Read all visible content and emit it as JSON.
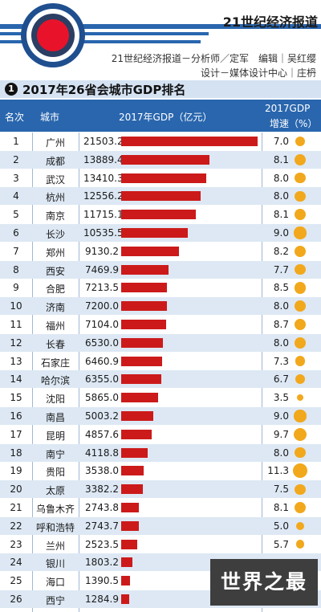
{
  "header": {
    "brand": "21世纪经济报道",
    "credit_line1": "21世纪经济报道－分析师／定军　编辑｜吴红缨",
    "credit_line2": "设计－媒体设计中心｜庄枬"
  },
  "title": {
    "number": "1",
    "text": "2017年26省会城市GDP排名"
  },
  "table_header": {
    "rank": "名次",
    "city": "城市",
    "gdp": "2017年GDP（亿元）",
    "growth_line1": "2017GDP",
    "growth_line2": "增速（%）"
  },
  "watermark": "世界之最",
  "colors": {
    "header_blue": "#2966ae",
    "bar_red": "#cc1a1a",
    "dot_orange": "#f2a81c",
    "row_alt": "#dde8f4"
  },
  "chart_data": {
    "type": "bar",
    "title": "2017年26省会城市GDP排名",
    "orientation": "horizontal",
    "columns": [
      "名次",
      "城市",
      "2017年GDP（亿元）",
      "2017GDP增速（%）"
    ],
    "rows": [
      {
        "rank": "1",
        "city": "广州",
        "gdp": "21503.2",
        "growth": "7.0"
      },
      {
        "rank": "2",
        "city": "成都",
        "gdp": "13889.4",
        "growth": "8.1"
      },
      {
        "rank": "3",
        "city": "武汉",
        "gdp": "13410.3",
        "growth": "8.0"
      },
      {
        "rank": "4",
        "city": "杭州",
        "gdp": "12556.2",
        "growth": "8.0"
      },
      {
        "rank": "5",
        "city": "南京",
        "gdp": "11715.1",
        "growth": "8.1"
      },
      {
        "rank": "6",
        "city": "长沙",
        "gdp": "10535.5",
        "growth": "9.0"
      },
      {
        "rank": "7",
        "city": "郑州",
        "gdp": "9130.2",
        "growth": "8.2"
      },
      {
        "rank": "8",
        "city": "西安",
        "gdp": "7469.9",
        "growth": "7.7"
      },
      {
        "rank": "9",
        "city": "合肥",
        "gdp": "7213.5",
        "growth": "8.5"
      },
      {
        "rank": "10",
        "city": "济南",
        "gdp": "7200.0",
        "growth": "8.0"
      },
      {
        "rank": "11",
        "city": "福州",
        "gdp": "7104.0",
        "growth": "8.7"
      },
      {
        "rank": "12",
        "city": "长春",
        "gdp": "6530.0",
        "growth": "8.0"
      },
      {
        "rank": "13",
        "city": "石家庄",
        "gdp": "6460.9",
        "growth": "7.3"
      },
      {
        "rank": "14",
        "city": "哈尔滨",
        "gdp": "6355.0",
        "growth": "6.7"
      },
      {
        "rank": "15",
        "city": "沈阳",
        "gdp": "5865.0",
        "growth": "3.5"
      },
      {
        "rank": "16",
        "city": "南昌",
        "gdp": "5003.2",
        "growth": "9.0"
      },
      {
        "rank": "17",
        "city": "昆明",
        "gdp": "4857.6",
        "growth": "9.7"
      },
      {
        "rank": "18",
        "city": "南宁",
        "gdp": "4118.8",
        "growth": "8.0"
      },
      {
        "rank": "19",
        "city": "贵阳",
        "gdp": "3538.0",
        "growth": "11.3"
      },
      {
        "rank": "20",
        "city": "太原",
        "gdp": "3382.2",
        "growth": "7.5"
      },
      {
        "rank": "21",
        "city": "乌鲁木齐",
        "gdp": "2743.8",
        "growth": "8.1"
      },
      {
        "rank": "22",
        "city": "呼和浩特",
        "gdp": "2743.7",
        "growth": "5.0"
      },
      {
        "rank": "23",
        "city": "兰州",
        "gdp": "2523.5",
        "growth": "5.7"
      },
      {
        "rank": "24",
        "city": "银川",
        "gdp": "1803.2",
        "growth": ""
      },
      {
        "rank": "25",
        "city": "海口",
        "gdp": "1390.5",
        "growth": ""
      },
      {
        "rank": "26",
        "city": "西宁",
        "gdp": "1284.9",
        "growth": ""
      }
    ]
  }
}
